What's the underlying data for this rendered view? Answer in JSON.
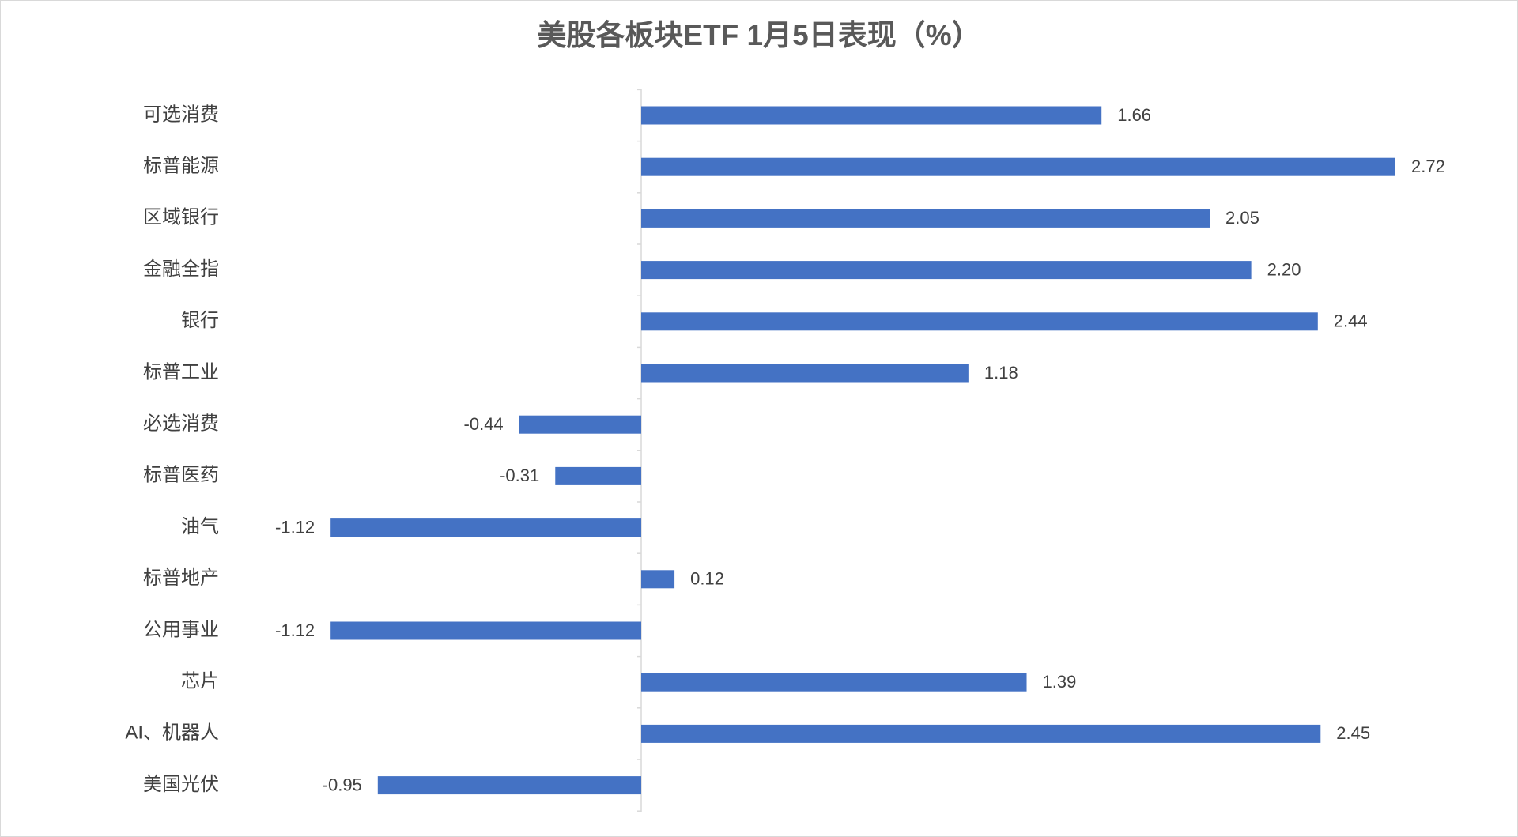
{
  "chart_data": {
    "type": "bar",
    "orientation": "horizontal",
    "title": "美股各板块ETF  1月5日表现（%）",
    "categories": [
      "可选消费",
      "标普能源",
      "区域银行",
      "金融全指",
      "银行",
      "标普工业",
      "必选消费",
      "标普医药",
      "油气",
      "标普地产",
      "公用事业",
      "芯片",
      "AI、机器人",
      "美国光伏"
    ],
    "values": [
      1.66,
      2.72,
      2.05,
      2.2,
      2.44,
      1.18,
      -0.44,
      -0.31,
      -1.12,
      0.12,
      -1.12,
      1.39,
      2.45,
      -0.95
    ],
    "value_labels": [
      "1.66",
      "2.72",
      "2.05",
      "2.20",
      "2.44",
      "1.18",
      "-0.44",
      "-0.31",
      "-1.12",
      "0.12",
      "-1.12",
      "1.39",
      "2.45",
      "-0.95"
    ],
    "color": "#4472c4"
  }
}
